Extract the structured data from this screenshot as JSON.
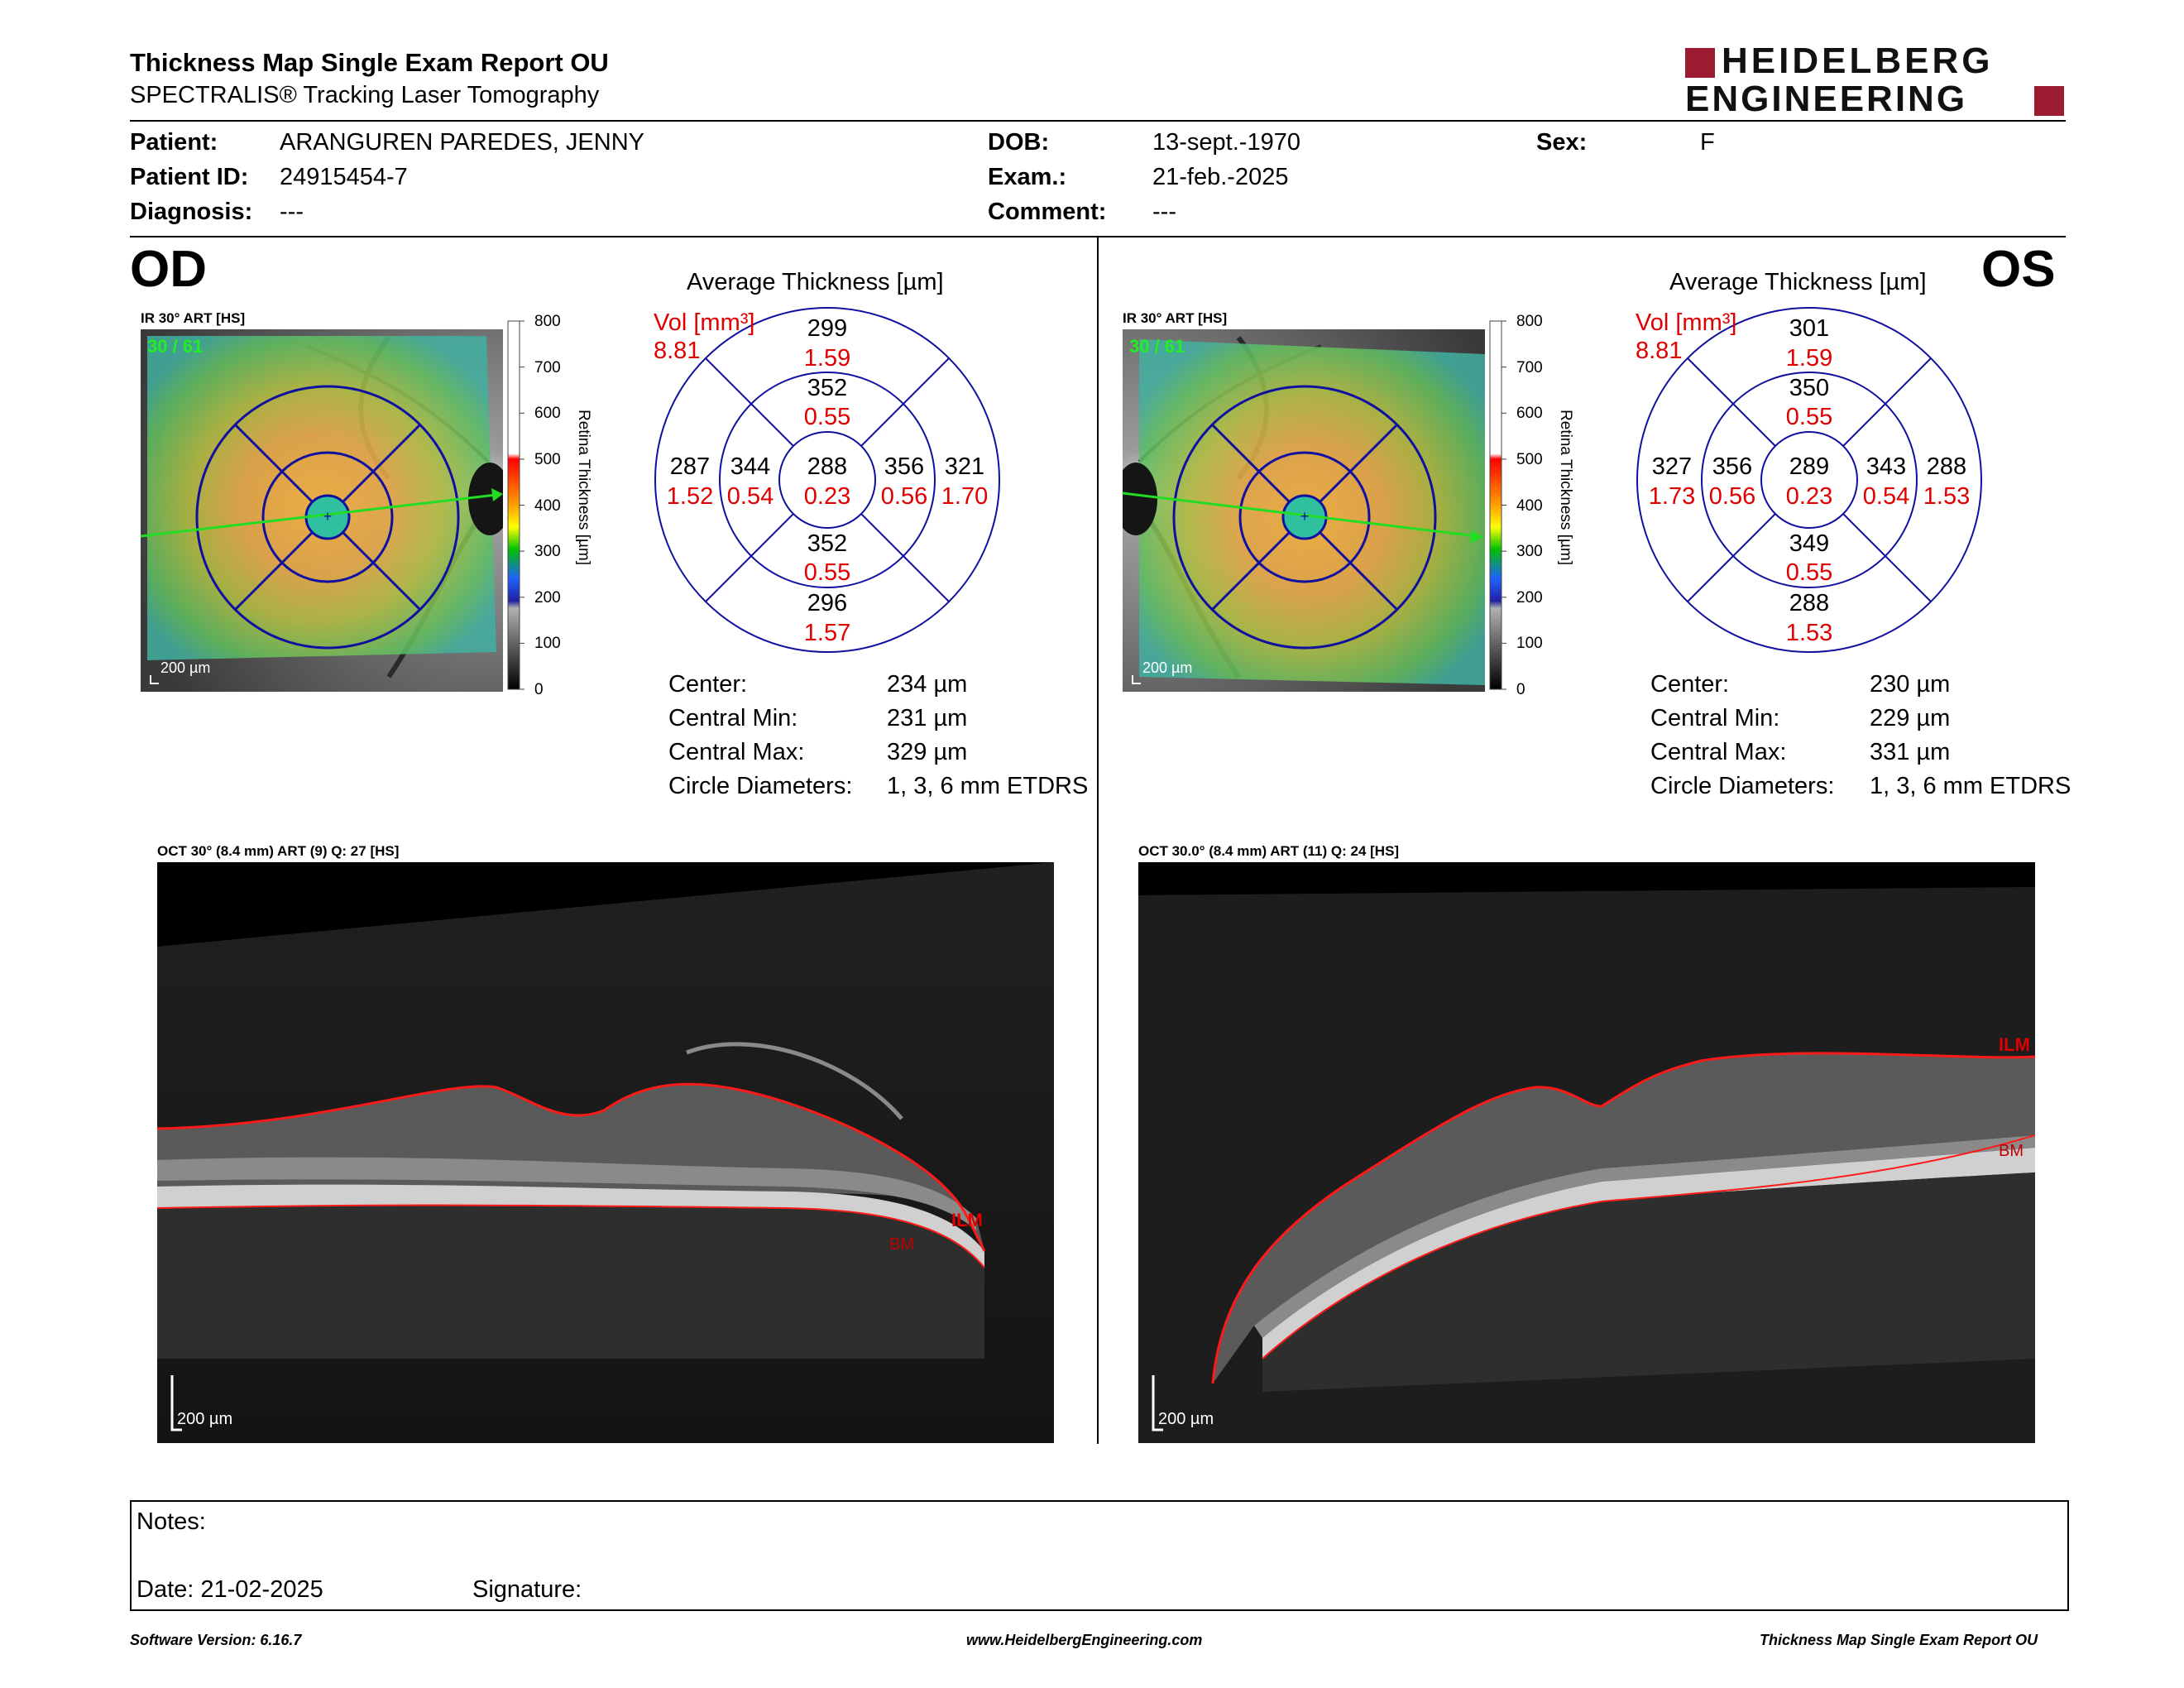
{
  "report": {
    "title": "Thickness Map Single Exam Report OU",
    "subtitle": "SPECTRALIS® Tracking Laser Tomography",
    "logo_line1": "HEIDELBERG",
    "logo_line2": "ENGINEERING",
    "brand_color": "#9b1b30"
  },
  "patient": {
    "patient_label": "Patient:",
    "patient_value": "ARANGUREN PAREDES, JENNY",
    "id_label": "Patient ID:",
    "id_value": "24915454-7",
    "diagnosis_label": "Diagnosis:",
    "diagnosis_value": "---",
    "dob_label": "DOB:",
    "dob_value": "13-sept.-1970",
    "exam_label": "Exam.:",
    "exam_value": "21-feb.-2025",
    "comment_label": "Comment:",
    "comment_value": "---",
    "sex_label": "Sex:",
    "sex_value": "F"
  },
  "od": {
    "eye_label": "OD",
    "ir_label": "IR 30° ART [HS]",
    "frames": "30 / 61",
    "scale": "200 µm",
    "avg_title": "Average Thickness [µm]",
    "vol_label": "Vol [mm³]",
    "total_vol": "8.81",
    "sectors": {
      "outer_top": "299",
      "outer_top_vol": "1.59",
      "inner_top": "352",
      "inner_top_vol": "0.55",
      "center": "288",
      "center_vol": "0.23",
      "outer_left": "287",
      "outer_left_vol": "1.52",
      "inner_left": "344",
      "inner_left_vol": "0.54",
      "inner_right": "356",
      "inner_right_vol": "0.56",
      "outer_right": "321",
      "outer_right_vol": "1.70",
      "inner_bottom": "352",
      "inner_bottom_vol": "0.55",
      "outer_bottom": "296",
      "outer_bottom_vol": "1.57"
    },
    "stats": {
      "center_label": "Center:",
      "center_value": "234 µm",
      "min_label": "Central Min:",
      "min_value": "231 µm",
      "max_label": "Central Max:",
      "max_value": "329 µm",
      "diam_label": "Circle Diameters:",
      "diam_value": "1, 3, 6 mm ETDRS"
    },
    "oct_label": "OCT 30° (8.4 mm) ART (9) Q: 27 [HS]",
    "oct_scale": "200 µm",
    "ilm": "ILM",
    "bm": "BM"
  },
  "os": {
    "eye_label": "OS",
    "ir_label": "IR 30° ART [HS]",
    "frames": "30 / 61",
    "scale": "200 µm",
    "avg_title": "Average Thickness [µm]",
    "vol_label": "Vol [mm³]",
    "total_vol": "8.81",
    "sectors": {
      "outer_top": "301",
      "outer_top_vol": "1.59",
      "inner_top": "350",
      "inner_top_vol": "0.55",
      "center": "289",
      "center_vol": "0.23",
      "outer_left": "327",
      "outer_left_vol": "1.73",
      "inner_left": "356",
      "inner_left_vol": "0.56",
      "inner_right": "343",
      "inner_right_vol": "0.54",
      "outer_right": "288",
      "outer_right_vol": "1.53",
      "inner_bottom": "349",
      "inner_bottom_vol": "0.55",
      "outer_bottom": "288",
      "outer_bottom_vol": "1.53"
    },
    "stats": {
      "center_label": "Center:",
      "center_value": "230 µm",
      "min_label": "Central Min:",
      "min_value": "229 µm",
      "max_label": "Central Max:",
      "max_value": "331 µm",
      "diam_label": "Circle Diameters:",
      "diam_value": "1, 3, 6 mm ETDRS"
    },
    "oct_label": "OCT 30.0° (8.4 mm) ART (11) Q: 24 [HS]",
    "oct_scale": "200 µm",
    "ilm": "ILM",
    "bm": "BM"
  },
  "colorbar": {
    "title": "Retina Thickness [µm]",
    "ticks": [
      "800",
      "700",
      "600",
      "500",
      "400",
      "300",
      "200",
      "100",
      "0"
    ]
  },
  "notes": {
    "notes_label": "Notes:",
    "date_label": "Date: 21-02-2025",
    "signature_label": "Signature:"
  },
  "footer": {
    "software": "Software Version: 6.16.7",
    "website": "www.HeidelbergEngineering.com",
    "report_name": "Thickness Map Single Exam Report OU"
  },
  "colors": {
    "etdrs_grid": "#1010a0",
    "volume_text": "#e00000",
    "segmentation": "#ff1a1a",
    "scan_arrow": "#22dd22"
  }
}
